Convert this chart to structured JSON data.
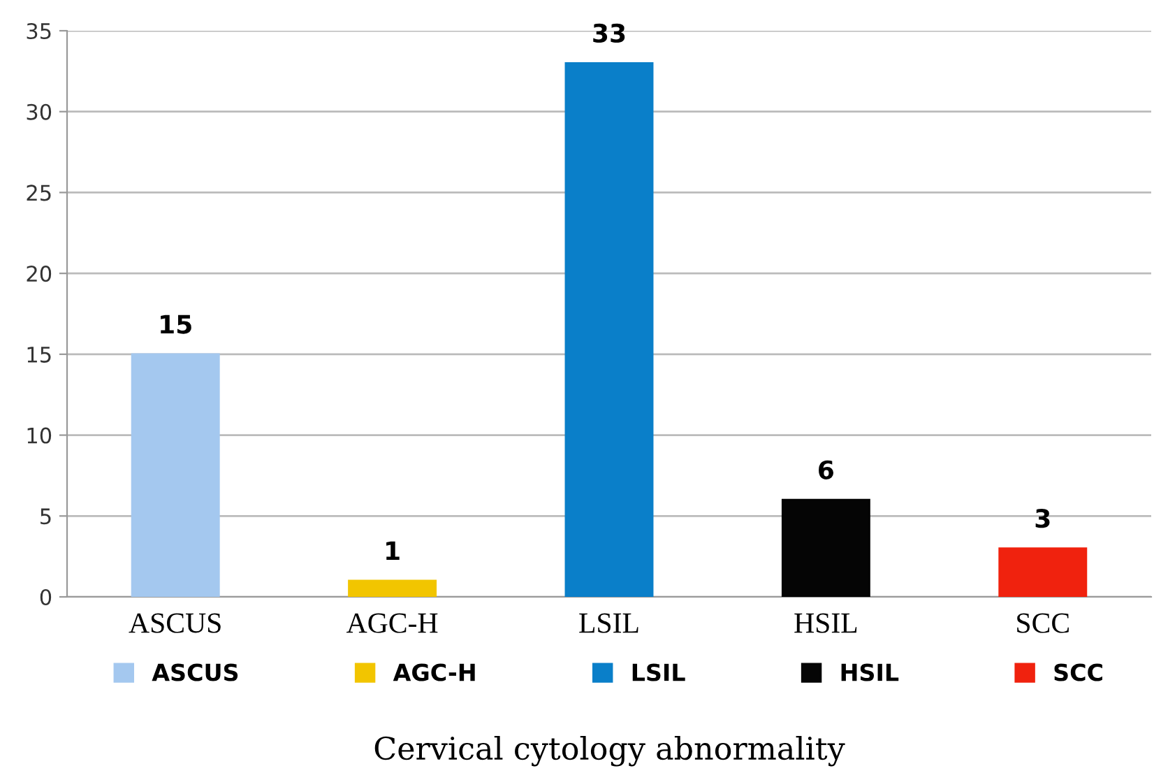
{
  "chart_data": {
    "type": "bar",
    "xlabel": "Cervical cytology abnormality",
    "categories": [
      "ASCUS",
      "AGC-H",
      "LSIL",
      "HSIL",
      "SCC"
    ],
    "stacked": true,
    "series": [
      {
        "name": "ASCUS",
        "color": "#a4c8ef",
        "values": [
          15,
          null,
          null,
          null,
          null
        ]
      },
      {
        "name": "AGC-H",
        "color": "#f2c500",
        "values": [
          null,
          1,
          null,
          null,
          null
        ]
      },
      {
        "name": "LSIL",
        "color": "#0a7fc9",
        "values": [
          null,
          null,
          33,
          null,
          null
        ]
      },
      {
        "name": "HSIL",
        "color": "#050505",
        "values": [
          null,
          null,
          null,
          6,
          null
        ]
      },
      {
        "name": "SCC",
        "color": "#f0220e",
        "values": [
          null,
          null,
          null,
          null,
          3
        ]
      }
    ],
    "ylim": [
      0,
      35
    ],
    "yticks": [
      0,
      5,
      10,
      15,
      20,
      25,
      30,
      35
    ],
    "grid": "y",
    "data_labels": true,
    "legend": "bottom"
  }
}
